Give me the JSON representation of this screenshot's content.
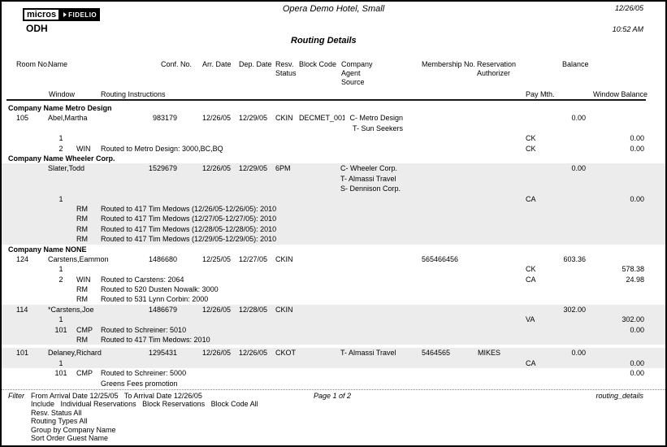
{
  "page": {
    "logo_micros": "micros",
    "logo_fidelio": "FIDELIO",
    "property_code": "ODH",
    "hotel_name": "Opera Demo Hotel, Small",
    "report_title": "Routing Details",
    "report_date": "12/26/05",
    "report_time": "10:52 AM"
  },
  "colors": {
    "row_shading": "#ececec"
  },
  "table": {
    "headers": {
      "room_no": "Room No.",
      "name": "Name",
      "conf_no": "Conf. No.",
      "arr_date": "Arr. Date",
      "dep_date": "Dep. Date",
      "resv_1": "Resv.",
      "resv_2": "Status",
      "block_code": "Block Code",
      "company_1": "Company",
      "company_2": "Agent",
      "company_3": "Source",
      "membership_no": "Membership No.",
      "auth_1": "Reservation",
      "auth_2": "Authorizer",
      "balance": "Balance",
      "window": "Window",
      "routing_instructions": "Routing Instructions",
      "pay_mth": "Pay Mth.",
      "window_balance": "Window Balance"
    },
    "groups": [
      {
        "label": "Company Name Metro Design",
        "rows": [
          {
            "kind": "main",
            "shaded": false,
            "room": "105",
            "name": "Abel,Martha",
            "conf": "983179",
            "arr": "12/26/05",
            "dep": "12/29/05",
            "resv": "CKIN",
            "block": "DECMET_001",
            "company": [
              "C- Metro Design",
              "T- Sun Seekers"
            ],
            "company_align": "right",
            "bal": "0.00"
          },
          {
            "kind": "win",
            "shaded": false,
            "win": "1",
            "paymth": "CK",
            "winbal": "0.00"
          },
          {
            "kind": "win",
            "shaded": false,
            "win": "2",
            "rtype": "WIN",
            "instr": [
              "Routed to Metro Design: 3000,BC,BQ"
            ],
            "paymth": "CK",
            "winbal": "0.00"
          }
        ]
      },
      {
        "label": "Company Name Wheeler Corp.",
        "rows": [
          {
            "kind": "main",
            "shaded": true,
            "name": "Slater,Todd",
            "conf": "1529679",
            "arr": "12/26/05",
            "dep": "12/29/05",
            "resv": "6PM",
            "company": [
              "C- Wheeler Corp.",
              "T- Almassi Travel",
              "S- Dennison Corp."
            ],
            "bal": "0.00"
          },
          {
            "kind": "win",
            "shaded": true,
            "win": "1",
            "paymth": "CA",
            "winbal": "0.00"
          },
          {
            "kind": "win",
            "shaded": true,
            "rtype": "RM",
            "instr": [
              "Routed to 417 Tim Medows (12/26/05-12/26/05): 2010"
            ]
          },
          {
            "kind": "win",
            "shaded": true,
            "rtype": "RM",
            "instr": [
              "Routed to 417 Tim Medows (12/27/05-12/27/05): 2010"
            ]
          },
          {
            "kind": "win",
            "shaded": true,
            "rtype": "RM",
            "instr": [
              "Routed to 417 Tim Medows (12/28/05-12/28/05): 2010"
            ]
          },
          {
            "kind": "win",
            "shaded": true,
            "rtype": "RM",
            "instr": [
              "Routed to 417 Tim Medows (12/29/05-12/29/05): 2010"
            ]
          }
        ]
      },
      {
        "label": "Company Name NONE",
        "rows": [
          {
            "kind": "main",
            "shaded": false,
            "room": "124",
            "name": "Carstens,Eammon",
            "conf": "1486680",
            "arr": "12/25/05",
            "dep": "12/27/05",
            "resv": "CKIN",
            "member": "565466456",
            "bal": "603.36"
          },
          {
            "kind": "win",
            "shaded": false,
            "win": "1",
            "paymth": "CK",
            "winbal": "578.38"
          },
          {
            "kind": "win",
            "shaded": false,
            "win": "2",
            "rtype": "WIN",
            "instr": [
              "Routed to Carstens: 2064"
            ],
            "paymth": "CA",
            "winbal": "24.98"
          },
          {
            "kind": "win",
            "shaded": false,
            "rtype": "RM",
            "instr": [
              "Routed to 520 Dusten Nowalk: 3000"
            ]
          },
          {
            "kind": "win",
            "shaded": false,
            "rtype": "RM",
            "instr": [
              "Routed to 531 Lynn Corbin: 2000"
            ]
          },
          {
            "kind": "main",
            "shaded": true,
            "room": "114",
            "name": "*Carstens,Joe",
            "conf": "1486679",
            "arr": "12/26/05",
            "dep": "12/28/05",
            "resv": "CKIN",
            "bal": "302.00"
          },
          {
            "kind": "win",
            "shaded": true,
            "win": "1",
            "paymth": "VA",
            "winbal": "302.00"
          },
          {
            "kind": "win",
            "shaded": true,
            "win": "101",
            "rtype": "CMP",
            "instr": [
              "Routed to Schreiner: 5010"
            ],
            "winbal": "0.00"
          },
          {
            "kind": "win",
            "shaded": true,
            "rtype": "RM",
            "instr": [
              "Routed to 417 Tim Medows: 2010"
            ]
          },
          {
            "kind": "main",
            "shaded": true,
            "gap": 4,
            "room": "101",
            "name": "Delaney,Richard",
            "conf": "1295431",
            "arr": "12/26/05",
            "dep": "12/26/05",
            "resv": "CKOT",
            "company": [
              "T- Almassi Travel"
            ],
            "member": "5464565",
            "auth": "MIKES",
            "bal": "0.00"
          },
          {
            "kind": "win",
            "shaded": true,
            "win": "1",
            "paymth": "CA",
            "winbal": "0.00"
          },
          {
            "kind": "win",
            "shaded": false,
            "win": "101",
            "rtype": "CMP",
            "instr": [
              "Routed to Schreiner: 5000",
              "Greens Fees promotion"
            ],
            "winbal": "0.00"
          }
        ]
      }
    ]
  },
  "footer": {
    "filter_label": "Filter",
    "filter_lines": [
      "From Arrival Date 12/25/05   To Arrival Date 12/26/05",
      "Include   Individual Reservations   Block Reservations   Block Code All",
      "Resv. Status All",
      "Routing Types All",
      "Group by Company Name",
      "Sort Order Guest Name"
    ],
    "page_indicator": "Page 1 of 2",
    "report_file": "routing_details"
  }
}
